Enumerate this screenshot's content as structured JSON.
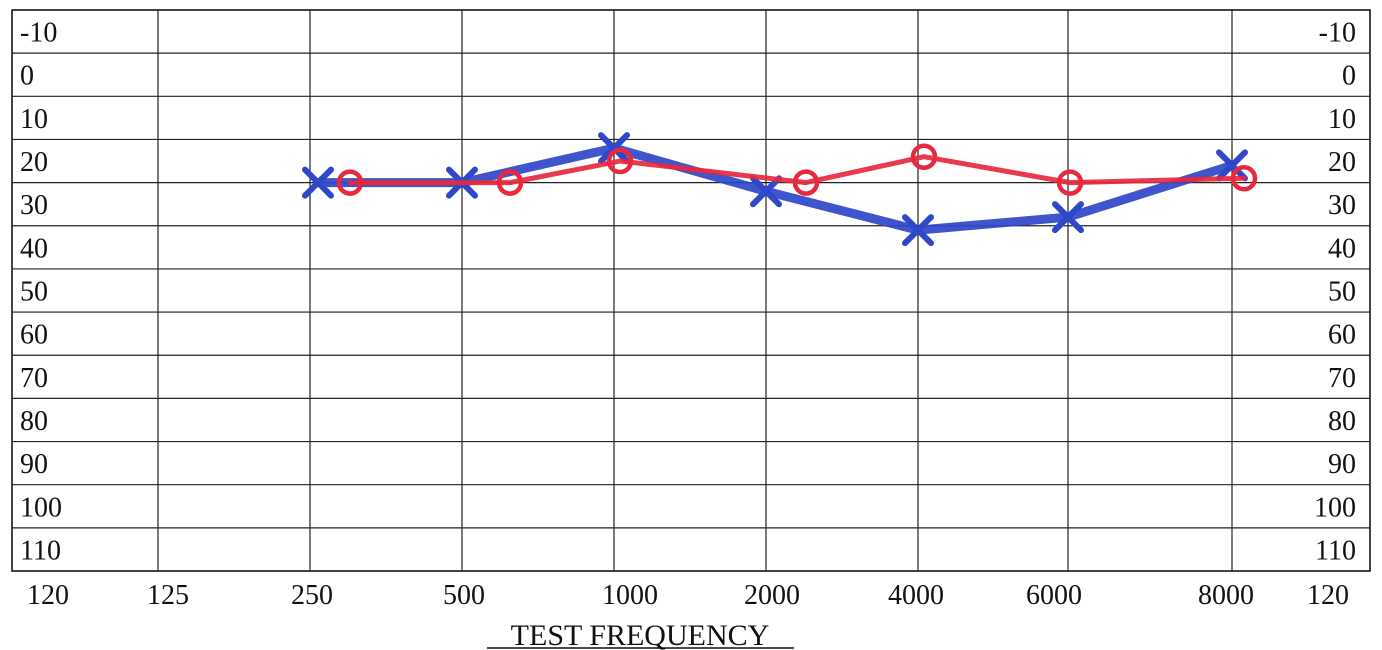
{
  "chart_data": {
    "type": "line",
    "xlabel": "TEST FREQUENCY",
    "x_tick_labels": [
      "120",
      "125",
      "250",
      "500",
      "1000",
      "2000",
      "4000",
      "6000",
      "8000",
      "120"
    ],
    "y_tick_labels": [
      "-10",
      "0",
      "10",
      "20",
      "30",
      "40",
      "50",
      "60",
      "70",
      "80",
      "90",
      "100",
      "110"
    ],
    "ylim": [
      -10,
      110
    ],
    "y_inverted": true,
    "grid": true,
    "series": [
      {
        "marker": "x",
        "color": "#2f47c9",
        "points": [
          {
            "x": "250",
            "y": 25
          },
          {
            "x": "500",
            "y": 25
          },
          {
            "x": "1000",
            "y": 17
          },
          {
            "x": "2000",
            "y": 27
          },
          {
            "x": "4000",
            "y": 36
          },
          {
            "x": "6000",
            "y": 33
          },
          {
            "x": "8000",
            "y": 21
          }
        ]
      },
      {
        "marker": "o",
        "color": "#e8283d",
        "points": [
          {
            "x": "250",
            "y": 25
          },
          {
            "x": "500",
            "y": 25
          },
          {
            "x": "1000",
            "y": 20
          },
          {
            "x": "2000",
            "y": 25
          },
          {
            "x": "4000",
            "y": 19
          },
          {
            "x": "6000",
            "y": 25
          },
          {
            "x": "8000",
            "y": 24
          }
        ]
      }
    ]
  }
}
